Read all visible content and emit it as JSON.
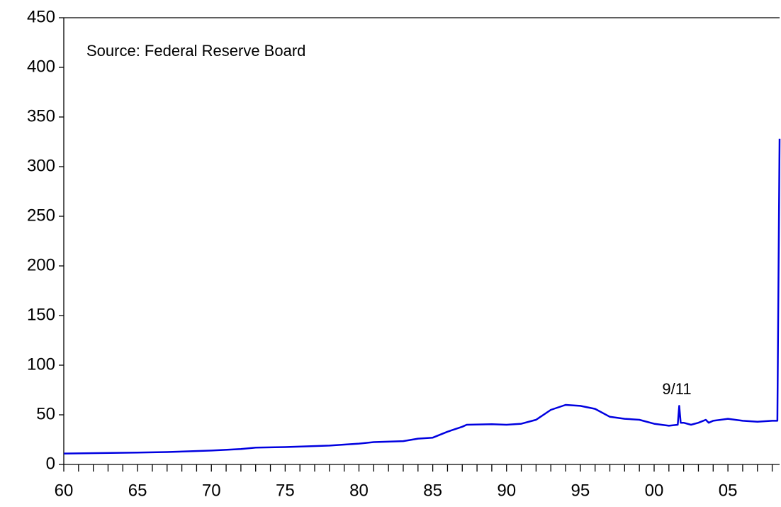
{
  "chart_data": {
    "type": "line",
    "annotations": [
      "Source: Federal Reserve Board",
      "9/11"
    ],
    "x": [
      1960,
      1965,
      1967,
      1970,
      1972,
      1973,
      1975,
      1978,
      1980,
      1981,
      1983,
      1984,
      1985,
      1986,
      1987,
      1987.3,
      1989,
      1990,
      1991,
      1992,
      1993,
      1994,
      1995,
      1996,
      1997,
      1998,
      1999,
      2000,
      2001,
      2001.6,
      2001.7,
      2001.8,
      2002,
      2002.5,
      2003,
      2003.5,
      2003.7,
      2004,
      2005,
      2006,
      2007,
      2008,
      2008.35,
      2008.5
    ],
    "series": [
      {
        "color": "#0000e0",
        "values": [
          11,
          12,
          12.5,
          14,
          15.5,
          17,
          17.5,
          19,
          21,
          22.5,
          23.5,
          26,
          27,
          33,
          38,
          40,
          40.5,
          40,
          41,
          45,
          55,
          60,
          59,
          56,
          48,
          46,
          45,
          41,
          39,
          40,
          59,
          42,
          42,
          40,
          42,
          45,
          42,
          44,
          46,
          44,
          43,
          44,
          44,
          328
        ]
      }
    ],
    "xlim": [
      1960,
      2008.5
    ],
    "ylim": [
      0,
      450
    ],
    "yticks": [
      0,
      50,
      100,
      150,
      200,
      250,
      300,
      350,
      400,
      450
    ],
    "xticks": [
      {
        "value": 1960,
        "label": "60"
      },
      {
        "value": 1965,
        "label": "65"
      },
      {
        "value": 1970,
        "label": "70"
      },
      {
        "value": 1975,
        "label": "75"
      },
      {
        "value": 1980,
        "label": "80"
      },
      {
        "value": 1985,
        "label": "85"
      },
      {
        "value": 1990,
        "label": "90"
      },
      {
        "value": 1995,
        "label": "95"
      },
      {
        "value": 2000,
        "label": "00"
      },
      {
        "value": 2005,
        "label": "05"
      }
    ],
    "xminorticks": [
      1961,
      1962,
      1963,
      1964,
      1966,
      1967,
      1968,
      1969,
      1971,
      1972,
      1973,
      1974,
      1976,
      1977,
      1978,
      1979,
      1981,
      1982,
      1983,
      1984,
      1986,
      1987,
      1988,
      1989,
      1991,
      1992,
      1993,
      1994,
      1996,
      1997,
      1998,
      1999,
      2001,
      2002,
      2003,
      2004,
      2006,
      2007,
      2008
    ]
  }
}
